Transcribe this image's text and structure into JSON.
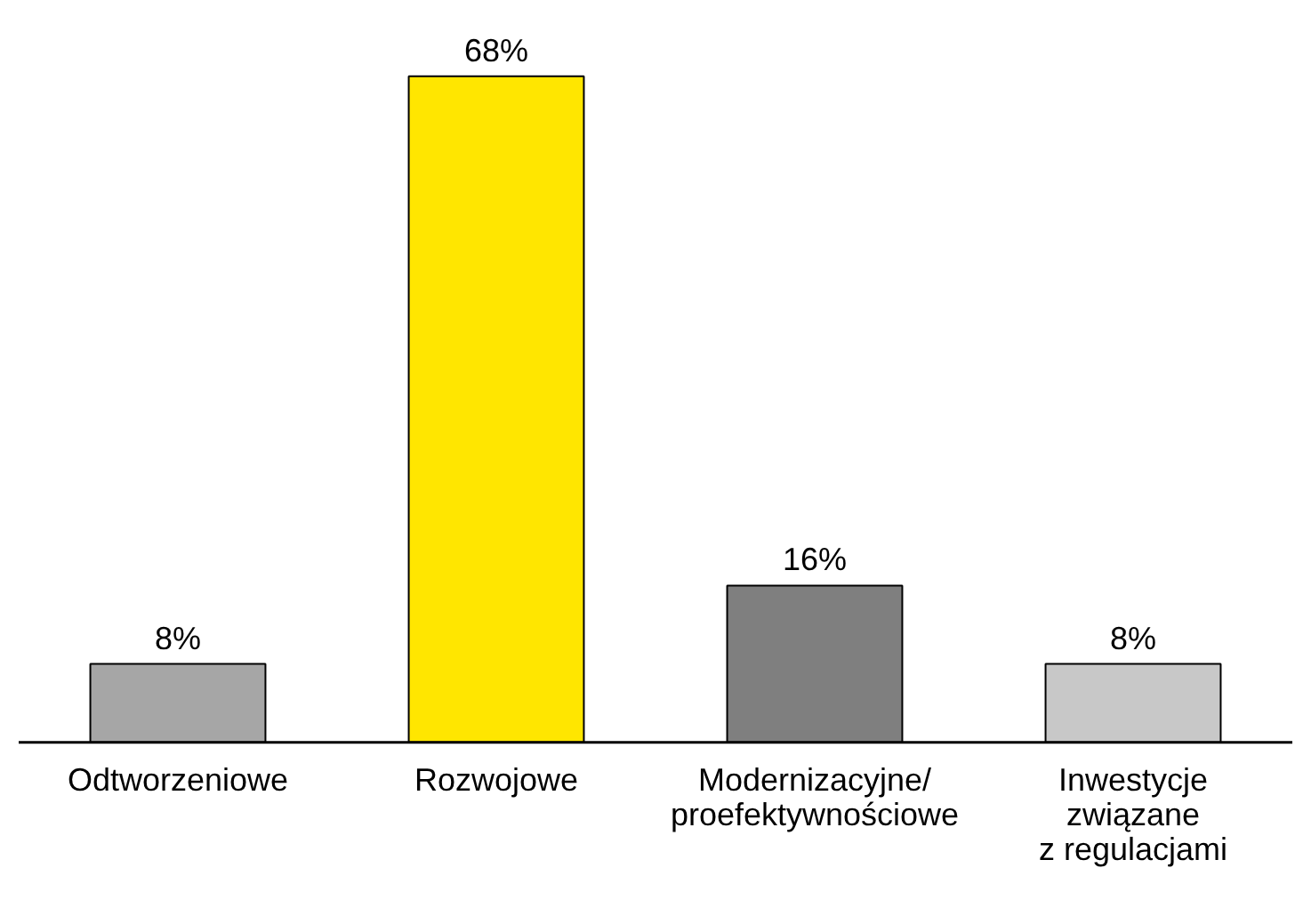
{
  "chart_data": {
    "type": "bar",
    "categories": [
      "Odtworzeniowe",
      "Rozwojowe",
      "Modernizacyjne/\nproefektywnościowe",
      "Inwestycje\nzwiązane\nz regulacjami"
    ],
    "values": [
      8,
      68,
      16,
      8
    ],
    "colors": [
      "#a6a6a6",
      "#ffe600",
      "#7f7f7f",
      "#c8c8c8"
    ],
    "value_labels": [
      "8%",
      "68%",
      "16%",
      "8%"
    ],
    "grid": false
  }
}
